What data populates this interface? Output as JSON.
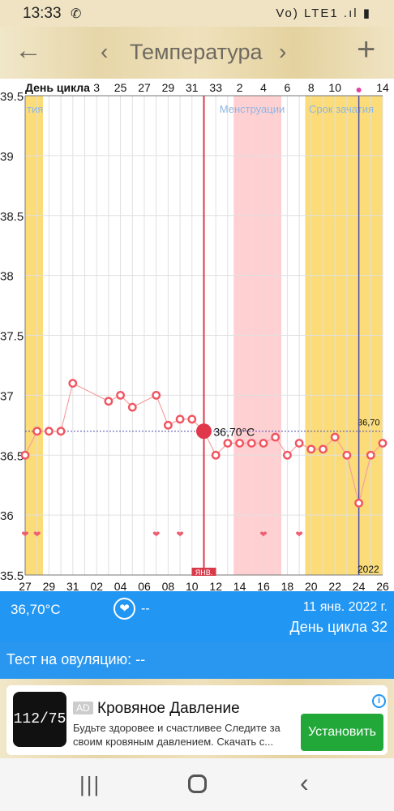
{
  "status_bar": {
    "time": "13:33",
    "right_text": "Vo) LTE1 .ıl ▮"
  },
  "toolbar": {
    "title": "Температура"
  },
  "chart_data": {
    "type": "line",
    "title": "",
    "xlabel": "",
    "ylabel": "",
    "top_axis_label": "День цикла",
    "cycle_day_ticks": [
      "3",
      "25",
      "27",
      "29",
      "31",
      "33",
      "2",
      "4",
      "6",
      "8",
      "10",
      "14"
    ],
    "date_ticks": [
      "27",
      "29",
      "31",
      "02",
      "04",
      "06",
      "08",
      "10",
      "12",
      "14",
      "16",
      "18",
      "20",
      "22",
      "24",
      "26"
    ],
    "y_ticks": [
      "35.5",
      "36",
      "36.5",
      "37",
      "37.5",
      "38",
      "38.5",
      "39",
      "39.5"
    ],
    "ylim": [
      35.5,
      39.5
    ],
    "x": [
      0,
      1,
      2,
      3,
      4,
      5,
      6,
      7,
      8,
      9,
      10,
      11,
      12,
      13,
      14,
      15,
      16,
      17,
      18,
      19,
      20,
      21,
      22,
      23,
      24,
      25,
      26,
      27,
      28,
      29
    ],
    "y": [
      36.5,
      36.7,
      36.7,
      36.7,
      37.1,
      null,
      null,
      36.95,
      37.0,
      36.9,
      null,
      37.0,
      36.75,
      36.8,
      36.8,
      36.7,
      36.5,
      36.6,
      36.6,
      36.6,
      36.6,
      36.65,
      36.5,
      36.6,
      36.55,
      36.55,
      36.65,
      36.5,
      36.1,
      36.5
    ],
    "y_last": 36.6,
    "selected_value": 36.7,
    "selected_label": "36,70°C",
    "reference_value_label": "36,70",
    "month_label": "ЯНВ.",
    "year_label": "2022",
    "hearts_x": [
      0,
      1,
      11,
      13,
      20,
      23
    ],
    "period_bands": [
      {
        "label": "Менструации",
        "color": "#ffd0d2",
        "from": 17.5,
        "to": 21.5
      },
      {
        "label": "Срок зачатия",
        "color": "#fbdc78",
        "from": 23.5,
        "to": 30
      },
      {
        "label": "тия",
        "color": "#fbdc78",
        "from": -0.5,
        "to": 1.5
      }
    ],
    "colors": {
      "line": "#f4a1a1",
      "point": "#f05560",
      "grid": "#e0e0e0",
      "selected_line": "#d93a4a",
      "today_line": "#4a4ab0"
    }
  },
  "info_panel": {
    "temperature": "36,70°C",
    "heart_value": "--",
    "date": "11 янв. 2022 г.",
    "cycle_day": "День цикла 32"
  },
  "ovulation_test": {
    "label": "Тест на овуляцию: --"
  },
  "ad": {
    "badge": "AD",
    "title": "Кровяное Давление",
    "description": "Будьте здоровее и счастливее Следите за своим кровяным давлением. Скачать с...",
    "button": "Установить",
    "icon_text": "112/75"
  }
}
